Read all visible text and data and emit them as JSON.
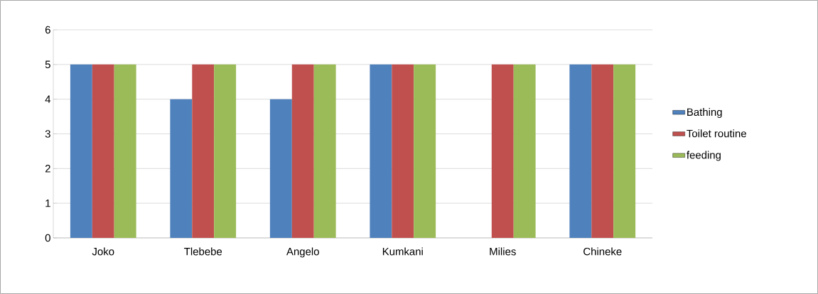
{
  "chart_data": {
    "type": "bar",
    "categories": [
      "Joko",
      "Tlebebe",
      "Angelo",
      "Kumkani",
      "Milies",
      "Chineke"
    ],
    "series": [
      {
        "name": "Bathing",
        "color": "#4f81bd",
        "values": [
          5,
          4,
          4,
          5,
          0,
          5
        ]
      },
      {
        "name": "Toilet routine",
        "color": "#c0504d",
        "values": [
          5,
          5,
          5,
          5,
          5,
          5
        ]
      },
      {
        "name": "feeding",
        "color": "#9bbb59",
        "values": [
          5,
          5,
          5,
          5,
          5,
          5
        ]
      }
    ],
    "ylim": [
      0,
      6
    ],
    "yticks": [
      0,
      1,
      2,
      3,
      4,
      5,
      6
    ],
    "grid": "y",
    "legend": "right"
  }
}
